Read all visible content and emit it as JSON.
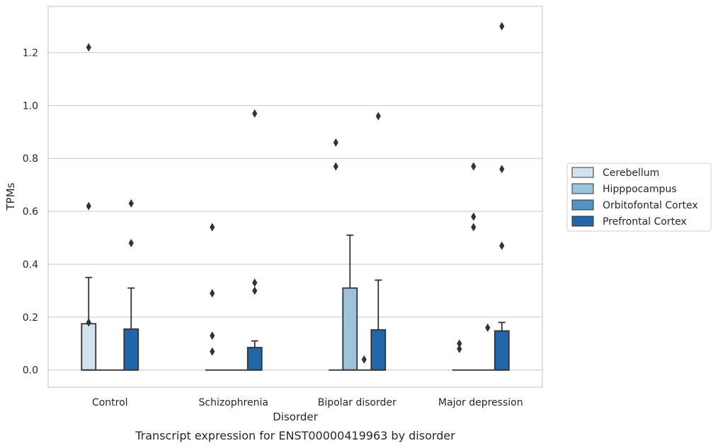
{
  "chart_data": {
    "type": "box",
    "xlabel": "Disorder",
    "ylabel": "TPMs",
    "caption": "Transcript expression for ENST00000419963 by disorder",
    "ylim": [
      -0.065,
      1.375
    ],
    "yticks": [
      "0.0",
      "0.2",
      "0.4",
      "0.6",
      "0.8",
      "1.0",
      "1.2"
    ],
    "grid": true,
    "legend_position": "right",
    "categories": [
      "Control",
      "Schizophrenia",
      "Bipolar disorder",
      "Major depression"
    ],
    "series": [
      {
        "name": "Cerebellum",
        "color": "#d2e2f0",
        "boxes": [
          {
            "q1": 0.0,
            "median": 0.0,
            "q3": 0.175,
            "whisker_low": 0.0,
            "whisker_high": 0.35,
            "outliers": [
              1.22,
              0.62,
              0.18
            ]
          },
          {
            "q1": 0.0,
            "median": 0.0,
            "q3": 0.0,
            "whisker_low": 0.0,
            "whisker_high": 0.0,
            "outliers": [
              0.54,
              0.29,
              0.13,
              0.07
            ]
          },
          {
            "q1": 0.0,
            "median": 0.0,
            "q3": 0.0,
            "whisker_low": 0.0,
            "whisker_high": 0.0,
            "outliers": [
              0.86,
              0.77
            ]
          },
          {
            "q1": 0.0,
            "median": 0.0,
            "q3": 0.0,
            "whisker_low": 0.0,
            "whisker_high": 0.0,
            "outliers": [
              0.1,
              0.08
            ]
          }
        ]
      },
      {
        "name": "Hipppocampus",
        "color": "#9cc3da",
        "boxes": [
          {
            "q1": 0.0,
            "median": 0.0,
            "q3": 0.0,
            "whisker_low": 0.0,
            "whisker_high": 0.0,
            "outliers": []
          },
          {
            "q1": 0.0,
            "median": 0.0,
            "q3": 0.0,
            "whisker_low": 0.0,
            "whisker_high": 0.0,
            "outliers": []
          },
          {
            "q1": 0.0,
            "median": 0.0,
            "q3": 0.31,
            "whisker_low": 0.0,
            "whisker_high": 0.51,
            "outliers": []
          },
          {
            "q1": 0.0,
            "median": 0.0,
            "q3": 0.0,
            "whisker_low": 0.0,
            "whisker_high": 0.0,
            "outliers": [
              0.77,
              0.58,
              0.54
            ]
          }
        ]
      },
      {
        "name": "Orbitofontal Cortex",
        "color": "#5593c3",
        "boxes": [
          {
            "q1": 0.0,
            "median": 0.0,
            "q3": 0.0,
            "whisker_low": 0.0,
            "whisker_high": 0.0,
            "outliers": []
          },
          {
            "q1": 0.0,
            "median": 0.0,
            "q3": 0.0,
            "whisker_low": 0.0,
            "whisker_high": 0.0,
            "outliers": []
          },
          {
            "q1": 0.0,
            "median": 0.0,
            "q3": 0.0,
            "whisker_low": 0.0,
            "whisker_high": 0.0,
            "outliers": [
              0.04
            ]
          },
          {
            "q1": 0.0,
            "median": 0.0,
            "q3": 0.0,
            "whisker_low": 0.0,
            "whisker_high": 0.0,
            "outliers": [
              0.16
            ]
          }
        ]
      },
      {
        "name": "Prefrontal Cortex",
        "color": "#2166a8",
        "boxes": [
          {
            "q1": 0.0,
            "median": 0.0,
            "q3": 0.155,
            "whisker_low": 0.0,
            "whisker_high": 0.31,
            "outliers": [
              0.63,
              0.48
            ]
          },
          {
            "q1": 0.0,
            "median": 0.0,
            "q3": 0.085,
            "whisker_low": 0.0,
            "whisker_high": 0.11,
            "outliers": [
              0.97,
              0.33,
              0.3
            ]
          },
          {
            "q1": 0.0,
            "median": 0.0,
            "q3": 0.152,
            "whisker_low": 0.0,
            "whisker_high": 0.34,
            "outliers": [
              0.96
            ]
          },
          {
            "q1": 0.0,
            "median": 0.0,
            "q3": 0.148,
            "whisker_low": 0.0,
            "whisker_high": 0.18,
            "outliers": [
              1.3,
              0.76,
              0.47
            ]
          }
        ]
      }
    ]
  }
}
